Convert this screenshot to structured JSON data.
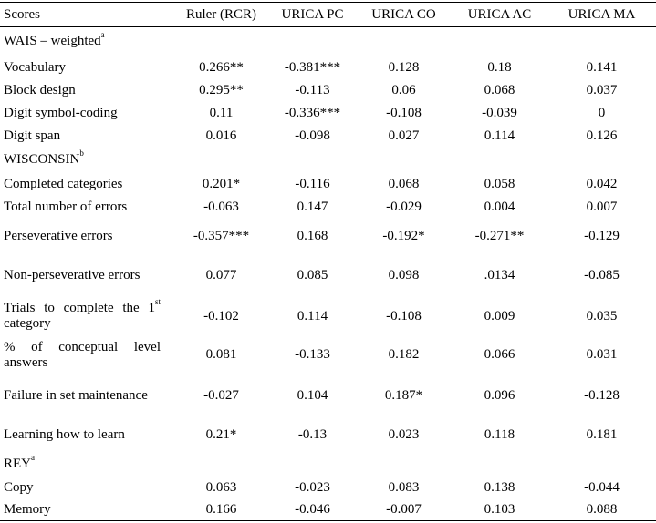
{
  "table": {
    "header": [
      "Scores",
      "Ruler (RCR)",
      "URICA PC",
      "URICA CO",
      "URICA AC",
      "URICA MA"
    ],
    "rows": [
      {
        "label": "WAIS – weighted",
        "sup": "a"
      },
      {
        "label": "Vocabulary",
        "values": [
          "0.266**",
          "-0.381***",
          "0.128",
          "0.18",
          "0.141"
        ]
      },
      {
        "label": "Block design",
        "values": [
          "0.295**",
          "-0.113",
          "0.06",
          "0.068",
          "0.037"
        ]
      },
      {
        "label": "Digit symbol-coding",
        "values": [
          "0.11",
          "-0.336***",
          "-0.108",
          "-0.039",
          "0"
        ]
      },
      {
        "label": "Digit span",
        "values": [
          "0.016",
          "-0.098",
          "0.027",
          "0.114",
          "0.126"
        ]
      },
      {
        "label": "WISCONSIN",
        "sup": "b"
      },
      {
        "label": "Completed categories",
        "values": [
          "0.201*",
          "-0.116",
          "0.068",
          "0.058",
          "0.042"
        ]
      },
      {
        "label": "Total number of errors",
        "values": [
          "-0.063",
          "0.147",
          "-0.029",
          "0.004",
          "0.007"
        ]
      },
      {
        "label": "Perseverative errors",
        "values": [
          "-0.357***",
          "0.168",
          "-0.192*",
          "-0.271**",
          "-0.129"
        ]
      },
      {
        "label": "Non-perseverative errors",
        "values": [
          "0.077",
          "0.085",
          "0.098",
          ".0134",
          "-0.085"
        ]
      },
      {
        "label": "Trials to complete the 1",
        "sup": "st",
        "after": " category",
        "values": [
          "-0.102",
          "0.114",
          "-0.108",
          "0.009",
          "0.035"
        ]
      },
      {
        "label": "% of conceptual level answers",
        "values": [
          "0.081",
          "-0.133",
          "0.182",
          "0.066",
          "0.031"
        ]
      },
      {
        "label": "Failure in set maintenance",
        "values": [
          "-0.027",
          "0.104",
          "0.187*",
          "0.096",
          "-0.128"
        ]
      },
      {
        "label": "Learning how to learn",
        "values": [
          "0.21*",
          "-0.13",
          "0.023",
          "0.118",
          "0.181"
        ]
      },
      {
        "label": "REY",
        "sup": "a"
      },
      {
        "label": "Copy",
        "values": [
          "0.063",
          "-0.023",
          "0.083",
          "0.138",
          "-0.044"
        ]
      },
      {
        "label": "Memory",
        "values": [
          "0.166",
          "-0.046",
          "-0.007",
          "0.103",
          "0.088"
        ]
      }
    ]
  }
}
